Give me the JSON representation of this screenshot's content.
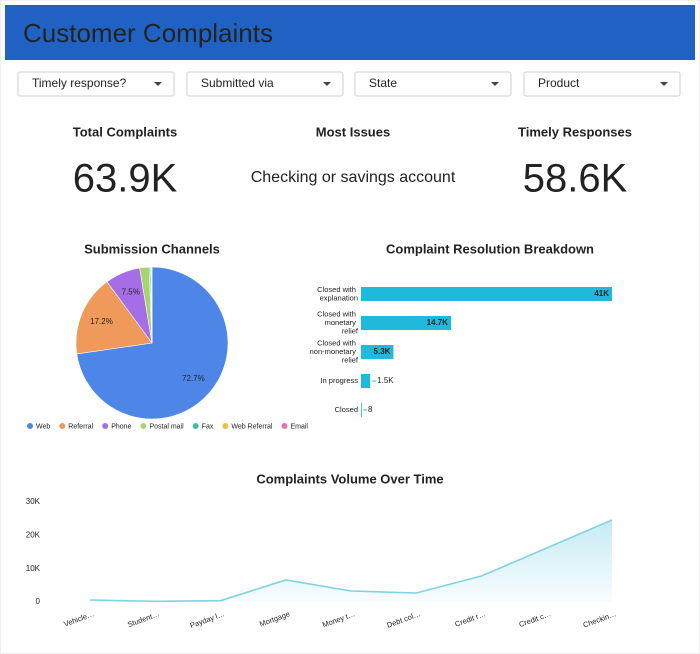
{
  "header": {
    "title": "Customer Complaints"
  },
  "filters": [
    "Timely response?",
    "Submitted via",
    "State",
    "Product"
  ],
  "kpis": [
    {
      "label": "Total Complaints",
      "value": "63.9K"
    },
    {
      "label": "Most Issues",
      "value": "Checking or savings account"
    },
    {
      "label": "Timely Responses",
      "value": "58.6K"
    }
  ],
  "chart_data": [
    {
      "type": "pie",
      "title": "Submission Channels",
      "categories": [
        "Web",
        "Referral",
        "Phone",
        "Postal mail",
        "Fax",
        "Web Referral",
        "Email"
      ],
      "values": [
        72.7,
        17.2,
        7.5,
        2.0,
        0.3,
        0.2,
        0.1
      ],
      "value_labels": [
        "72.7%",
        "17.2%",
        "7.5%",
        null,
        null,
        null,
        null
      ],
      "colors": [
        "#4e86e8",
        "#ef9a5a",
        "#a56ee6",
        "#a8d46f",
        "#3dbdb0",
        "#e8c547",
        "#e86fb4"
      ]
    },
    {
      "type": "hbar",
      "title": "Complaint Resolution Breakdown",
      "categories": [
        "Closed with explanation",
        "Closed with monetary relief",
        "Closed with non-monetary relief",
        "In progress",
        "Closed"
      ],
      "values": [
        41000,
        14700,
        5300,
        1500,
        8
      ],
      "value_labels": [
        "41K",
        "14.7K",
        "5.3K",
        "1.5K",
        "8"
      ],
      "color": "#1fb9dc"
    },
    {
      "type": "area",
      "title": "Complaints Volume Over Time",
      "categories": [
        "Vehicle…",
        "Student…",
        "Payday l…",
        "Mortgage",
        "Money t…",
        "Debt col…",
        "Credit r…",
        "Credit c…",
        "Checkin…"
      ],
      "values": [
        600,
        200,
        400,
        6600,
        3300,
        2700,
        7800,
        16200,
        24600
      ],
      "ylim": [
        0,
        30000
      ],
      "yticks": [
        0,
        {
          "value": 10000,
          "label": "10K"
        },
        {
          "value": 20000,
          "label": "20K"
        },
        {
          "value": 30000,
          "label": "30K"
        }
      ],
      "color": "#7fd3e6"
    }
  ]
}
